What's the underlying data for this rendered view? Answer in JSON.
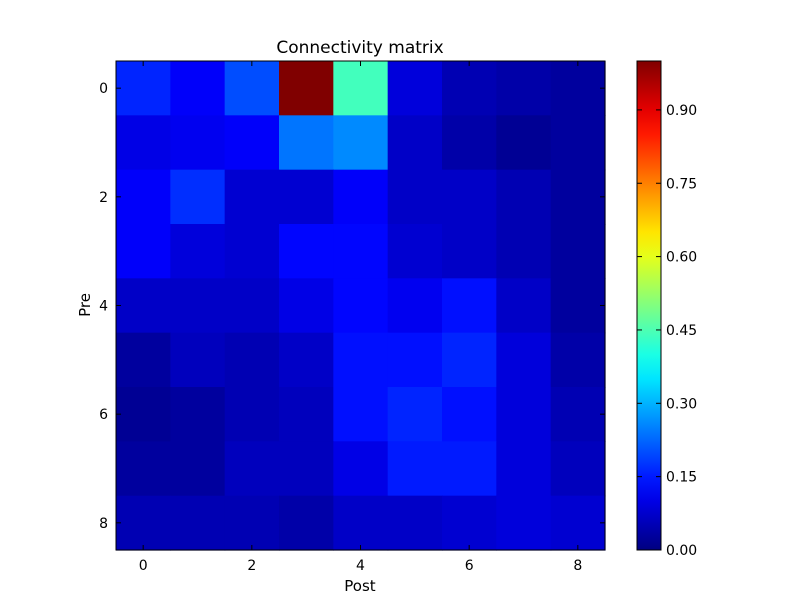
{
  "chart_data": {
    "type": "heatmap",
    "title": "Connectivity matrix",
    "xlabel": "Post",
    "ylabel": "Pre",
    "x_ticks": [
      0,
      2,
      4,
      6,
      8
    ],
    "y_ticks": [
      0,
      2,
      4,
      6,
      8
    ],
    "x_tick_labels": [
      "0",
      "2",
      "4",
      "6",
      "8"
    ],
    "y_tick_labels": [
      "0",
      "2",
      "4",
      "6",
      "8"
    ],
    "colormap": "jet",
    "vmin": 0.0,
    "vmax": 1.0,
    "colorbar_ticks": [
      0.0,
      0.15,
      0.3,
      0.45,
      0.6,
      0.75,
      0.9
    ],
    "colorbar_tick_labels": [
      "0.00",
      "0.15",
      "0.30",
      "0.45",
      "0.60",
      "0.75",
      "0.90"
    ],
    "grid": false,
    "matrix": [
      [
        0.16,
        0.12,
        0.2,
        1.0,
        0.44,
        0.09,
        0.05,
        0.04,
        0.03
      ],
      [
        0.1,
        0.11,
        0.12,
        0.24,
        0.26,
        0.07,
        0.04,
        0.02,
        0.03
      ],
      [
        0.12,
        0.17,
        0.08,
        0.08,
        0.12,
        0.07,
        0.07,
        0.05,
        0.03
      ],
      [
        0.12,
        0.09,
        0.08,
        0.13,
        0.13,
        0.08,
        0.07,
        0.05,
        0.03
      ],
      [
        0.07,
        0.07,
        0.07,
        0.1,
        0.13,
        0.11,
        0.14,
        0.07,
        0.03
      ],
      [
        0.03,
        0.06,
        0.05,
        0.07,
        0.14,
        0.14,
        0.16,
        0.09,
        0.04
      ],
      [
        0.02,
        0.03,
        0.05,
        0.06,
        0.14,
        0.16,
        0.14,
        0.09,
        0.05
      ],
      [
        0.03,
        0.03,
        0.06,
        0.06,
        0.1,
        0.15,
        0.15,
        0.09,
        0.06
      ],
      [
        0.05,
        0.05,
        0.05,
        0.04,
        0.07,
        0.07,
        0.08,
        0.09,
        0.08
      ]
    ]
  }
}
